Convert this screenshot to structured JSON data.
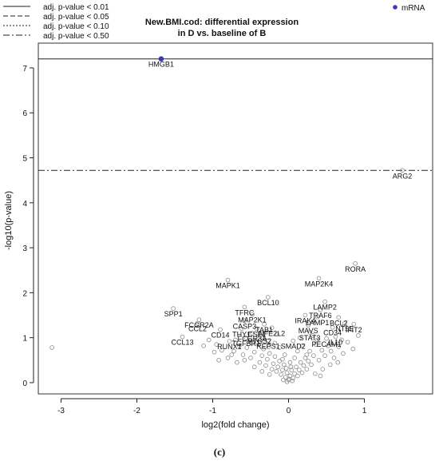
{
  "caption": "(c)",
  "chart_data": {
    "type": "scatter",
    "title_lines": [
      "New.BMI.cod: differential expression",
      "in D vs. baseline of B"
    ],
    "xlabel": "log2(fold change)",
    "ylabel": "-log10(p-value)",
    "xlim": [
      -3.3,
      1.9
    ],
    "ylim": [
      -0.25,
      7.55
    ],
    "x_ticks": [
      -3,
      -2,
      -1,
      0,
      1
    ],
    "y_ticks": [
      0,
      1,
      2,
      3,
      4,
      5,
      6,
      7
    ],
    "grid": false,
    "legend": {
      "position": "top-left",
      "entries": [
        {
          "label": "adj. p-value < 0.01",
          "dash": ""
        },
        {
          "label": "adj. p-value < 0.05",
          "dash": "6,3"
        },
        {
          "label": "adj. p-value < 0.10",
          "dash": "2,2"
        },
        {
          "label": "adj. p-value < 0.50",
          "dash": "8,3,2,3"
        }
      ]
    },
    "series_legend": {
      "position": "top-right",
      "label": "mRNA",
      "color": "#3b3bb0"
    },
    "threshold_lines": [
      {
        "y": 7.2,
        "dash": ""
      },
      {
        "y": 4.72,
        "dash": "8,3,2,3"
      }
    ],
    "highlight_points": [
      {
        "x": -1.68,
        "y": 7.2,
        "color": "#3b3bb0"
      }
    ],
    "labeled_points": [
      {
        "label": "HMGB1",
        "x": -1.68,
        "y": 7.2
      },
      {
        "label": "ARG2",
        "x": 1.5,
        "y": 4.72
      },
      {
        "label": "RORA",
        "x": 0.88,
        "y": 2.65
      },
      {
        "label": "MAP2K4",
        "x": 0.4,
        "y": 2.32
      },
      {
        "label": "MAPK1",
        "x": -0.8,
        "y": 2.28
      },
      {
        "label": "BCL10",
        "x": -0.27,
        "y": 1.9
      },
      {
        "label": "LAMP2",
        "x": 0.48,
        "y": 1.8
      },
      {
        "label": "TFRC",
        "x": -0.58,
        "y": 1.68
      },
      {
        "label": "SPP1",
        "x": -1.52,
        "y": 1.65
      },
      {
        "label": "TRAF6",
        "x": 0.42,
        "y": 1.62
      },
      {
        "label": "IRAK4",
        "x": 0.22,
        "y": 1.5
      },
      {
        "label": "MAP2K1",
        "x": -0.48,
        "y": 1.52
      },
      {
        "label": "LAMP1",
        "x": 0.38,
        "y": 1.46
      },
      {
        "label": "BCL2",
        "x": 0.66,
        "y": 1.45
      },
      {
        "label": "FCGR2A",
        "x": -1.18,
        "y": 1.4
      },
      {
        "label": "CASP3",
        "x": -0.58,
        "y": 1.38
      },
      {
        "label": "TAB1",
        "x": -0.32,
        "y": 1.3
      },
      {
        "label": "NT5E",
        "x": 0.74,
        "y": 1.32
      },
      {
        "label": "IFIT2",
        "x": 0.86,
        "y": 1.3
      },
      {
        "label": "CCL2",
        "x": -1.2,
        "y": 1.32
      },
      {
        "label": "MAVS",
        "x": 0.26,
        "y": 1.28
      },
      {
        "label": "CD34",
        "x": 0.58,
        "y": 1.23
      },
      {
        "label": "CD14",
        "x": -0.9,
        "y": 1.18
      },
      {
        "label": "THY1",
        "x": -0.62,
        "y": 1.2
      },
      {
        "label": "CSF1",
        "x": -0.42,
        "y": 1.2
      },
      {
        "label": "NFE2L2",
        "x": -0.22,
        "y": 1.22
      },
      {
        "label": "STAT3",
        "x": 0.28,
        "y": 1.12
      },
      {
        "label": "FCGR3A",
        "x": -0.48,
        "y": 1.1
      },
      {
        "label": "PTGS2",
        "x": -0.38,
        "y": 1.05
      },
      {
        "label": "CCL13",
        "x": -1.4,
        "y": 1.02
      },
      {
        "label": "IL10",
        "x": 0.62,
        "y": 1.02
      },
      {
        "label": "PECAM1",
        "x": 0.5,
        "y": 0.98
      },
      {
        "label": "TGFBR1",
        "x": -0.56,
        "y": 0.99
      },
      {
        "label": "RUNX1",
        "x": -0.78,
        "y": 0.92
      },
      {
        "label": "REPS1",
        "x": -0.27,
        "y": 0.93
      },
      {
        "label": "SMAD2",
        "x": 0.06,
        "y": 0.93
      }
    ],
    "gray_points": [
      [
        -3.12,
        0.78
      ],
      [
        -1.68,
        7.2
      ],
      [
        1.5,
        4.72
      ],
      [
        0.88,
        2.65
      ],
      [
        0.4,
        2.32
      ],
      [
        -0.8,
        2.28
      ],
      [
        -0.27,
        1.9
      ],
      [
        0.48,
        1.8
      ],
      [
        -0.58,
        1.68
      ],
      [
        -1.52,
        1.65
      ],
      [
        0.42,
        1.62
      ],
      [
        0.22,
        1.5
      ],
      [
        -0.48,
        1.52
      ],
      [
        0.38,
        1.46
      ],
      [
        0.66,
        1.45
      ],
      [
        -1.18,
        1.4
      ],
      [
        -0.58,
        1.38
      ],
      [
        -0.32,
        1.3
      ],
      [
        0.74,
        1.32
      ],
      [
        0.86,
        1.3
      ],
      [
        -1.2,
        1.32
      ],
      [
        0.26,
        1.28
      ],
      [
        0.58,
        1.23
      ],
      [
        -0.9,
        1.18
      ],
      [
        -0.62,
        1.2
      ],
      [
        -0.42,
        1.2
      ],
      [
        -0.22,
        1.22
      ],
      [
        0.28,
        1.12
      ],
      [
        -0.48,
        1.1
      ],
      [
        -0.38,
        1.05
      ],
      [
        -1.4,
        1.02
      ],
      [
        0.62,
        1.02
      ],
      [
        0.5,
        0.98
      ],
      [
        -0.56,
        0.99
      ],
      [
        -0.78,
        0.92
      ],
      [
        -0.27,
        0.93
      ],
      [
        0.06,
        0.93
      ],
      [
        -1.05,
        0.95
      ],
      [
        -1.12,
        0.82
      ],
      [
        -0.95,
        0.85
      ],
      [
        -0.88,
        0.72
      ],
      [
        -0.98,
        0.68
      ],
      [
        -0.7,
        0.95
      ],
      [
        -0.65,
        0.82
      ],
      [
        -0.72,
        0.7
      ],
      [
        -0.6,
        0.62
      ],
      [
        -0.55,
        0.78
      ],
      [
        -0.5,
        0.55
      ],
      [
        -0.45,
        0.68
      ],
      [
        -0.42,
        0.9
      ],
      [
        -0.38,
        0.45
      ],
      [
        -0.35,
        0.6
      ],
      [
        -0.33,
        0.75
      ],
      [
        -0.3,
        0.38
      ],
      [
        -0.28,
        0.52
      ],
      [
        -0.25,
        0.65
      ],
      [
        -0.22,
        0.3
      ],
      [
        -0.2,
        0.42
      ],
      [
        -0.18,
        0.58
      ],
      [
        -0.16,
        0.25
      ],
      [
        -0.14,
        0.35
      ],
      [
        -0.12,
        0.48
      ],
      [
        -0.1,
        0.18
      ],
      [
        -0.08,
        0.28
      ],
      [
        -0.06,
        0.4
      ],
      [
        -0.04,
        0.12
      ],
      [
        -0.02,
        0.22
      ],
      [
        0.0,
        0.06
      ],
      [
        0.02,
        0.15
      ],
      [
        0.04,
        0.28
      ],
      [
        0.06,
        0.1
      ],
      [
        0.08,
        0.2
      ],
      [
        0.1,
        0.35
      ],
      [
        0.12,
        0.15
      ],
      [
        0.14,
        0.28
      ],
      [
        0.16,
        0.45
      ],
      [
        0.18,
        0.22
      ],
      [
        0.2,
        0.38
      ],
      [
        0.22,
        0.55
      ],
      [
        0.24,
        0.3
      ],
      [
        0.26,
        0.48
      ],
      [
        0.28,
        0.7
      ],
      [
        0.3,
        0.4
      ],
      [
        0.33,
        0.6
      ],
      [
        0.36,
        0.85
      ],
      [
        0.4,
        0.5
      ],
      [
        0.44,
        0.72
      ],
      [
        0.48,
        0.6
      ],
      [
        0.52,
        0.82
      ],
      [
        0.56,
        0.7
      ],
      [
        0.6,
        0.55
      ],
      [
        0.66,
        0.8
      ],
      [
        0.72,
        0.65
      ],
      [
        0.78,
        0.9
      ],
      [
        0.85,
        0.75
      ],
      [
        0.92,
        1.05
      ],
      [
        0.08,
        0.55
      ],
      [
        0.12,
        0.7
      ],
      [
        0.18,
        0.82
      ],
      [
        -0.05,
        0.62
      ],
      [
        -0.12,
        0.78
      ],
      [
        -0.18,
        0.88
      ],
      [
        0.02,
        0.45
      ],
      [
        -0.08,
        0.52
      ],
      [
        0.15,
        1.0
      ],
      [
        0.32,
        1.05
      ],
      [
        -0.15,
        1.08
      ],
      [
        -0.58,
        0.5
      ],
      [
        -0.68,
        0.45
      ],
      [
        -0.8,
        0.55
      ],
      [
        -0.92,
        0.5
      ],
      [
        -0.45,
        0.35
      ],
      [
        -0.35,
        0.25
      ],
      [
        -0.25,
        0.18
      ],
      [
        0.35,
        0.2
      ],
      [
        0.45,
        0.3
      ],
      [
        0.55,
        0.4
      ],
      [
        0.65,
        0.45
      ],
      [
        0.42,
        0.15
      ],
      [
        -0.02,
        0.02
      ],
      [
        0.01,
        0.08
      ],
      [
        -0.07,
        0.06
      ],
      [
        0.05,
        0.04
      ],
      [
        0.03,
        0.35
      ],
      [
        -0.03,
        0.32
      ],
      [
        0.24,
        0.62
      ],
      [
        -0.26,
        0.8
      ],
      [
        0.38,
        0.95
      ],
      [
        -0.48,
        0.88
      ],
      [
        -0.75,
        0.62
      ],
      [
        0.7,
        0.95
      ]
    ]
  }
}
